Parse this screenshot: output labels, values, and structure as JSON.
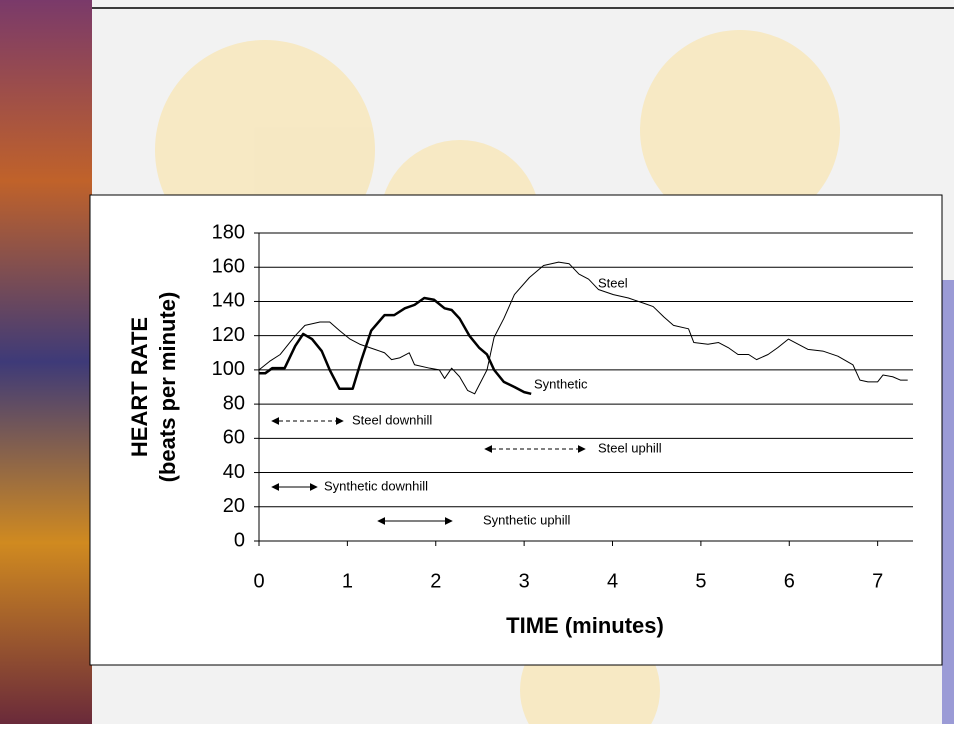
{
  "chart_data": {
    "type": "line",
    "x_label": "TIME (minutes)",
    "y_label": [
      "HEART RATE",
      "(beats per minute)"
    ],
    "xlim": [
      0,
      7.4
    ],
    "xticks": [
      0,
      1,
      2,
      3,
      4,
      5,
      6,
      7
    ],
    "ylim": [
      0,
      180
    ],
    "yticks": [
      0,
      20,
      40,
      60,
      80,
      100,
      120,
      140,
      160,
      180
    ],
    "grid": true,
    "series": [
      {
        "name": "Steel",
        "color": "#000000",
        "width": 1,
        "x": [
          0,
          0.12,
          0.24,
          0.41,
          0.52,
          0.69,
          0.8,
          0.91,
          1.03,
          1.14,
          1.31,
          1.42,
          1.5,
          1.59,
          1.7,
          1.76,
          1.93,
          2.04,
          2.1,
          2.18,
          2.27,
          2.36,
          2.44,
          2.49,
          2.58,
          2.66,
          2.77,
          2.89,
          3.06,
          3.22,
          3.39,
          3.51,
          3.62,
          3.73,
          3.84,
          4.01,
          4.18,
          4.35,
          4.46,
          4.58,
          4.69,
          4.86,
          4.92,
          5.08,
          5.2,
          5.31,
          5.42,
          5.54,
          5.63,
          5.76,
          5.87,
          5.99,
          6.1,
          6.21,
          6.38,
          6.55,
          6.72,
          6.8,
          6.89,
          7.0,
          7.06,
          7.17,
          7.26,
          7.34
        ],
        "values": [
          100,
          105,
          109,
          120,
          126,
          128,
          128,
          123,
          118,
          115,
          112,
          110,
          106,
          107,
          110,
          103,
          101,
          100,
          95,
          101,
          96,
          88,
          86,
          91,
          100,
          119,
          130,
          144,
          154,
          161,
          163,
          162,
          156,
          153,
          147,
          144,
          142,
          139,
          137,
          131,
          126,
          124,
          116,
          115,
          116,
          113,
          109,
          109,
          106,
          109,
          113,
          118,
          115,
          112,
          111,
          108,
          103,
          94,
          93,
          93,
          97,
          96,
          94,
          94
        ]
      },
      {
        "name": "Synthetic",
        "color": "#000000",
        "width": 2.5,
        "x": [
          0,
          0.07,
          0.15,
          0.29,
          0.41,
          0.5,
          0.6,
          0.71,
          0.8,
          0.91,
          1.06,
          1.16,
          1.27,
          1.42,
          1.53,
          1.65,
          1.76,
          1.87,
          1.98,
          2.1,
          2.18,
          2.27,
          2.38,
          2.49,
          2.58,
          2.66,
          2.77,
          2.89,
          3.0,
          3.08
        ],
        "values": [
          98,
          98,
          101,
          101,
          114,
          121,
          118,
          111,
          100,
          89,
          89,
          106,
          123,
          132,
          132,
          136,
          138,
          142,
          141,
          136,
          135,
          130,
          120,
          113,
          109,
          100,
          93,
          90,
          87,
          86
        ]
      }
    ],
    "annotations": [
      "Steel downhill",
      "Steel uphill",
      "Synthetic downhill",
      "Synthetic uphill"
    ]
  }
}
